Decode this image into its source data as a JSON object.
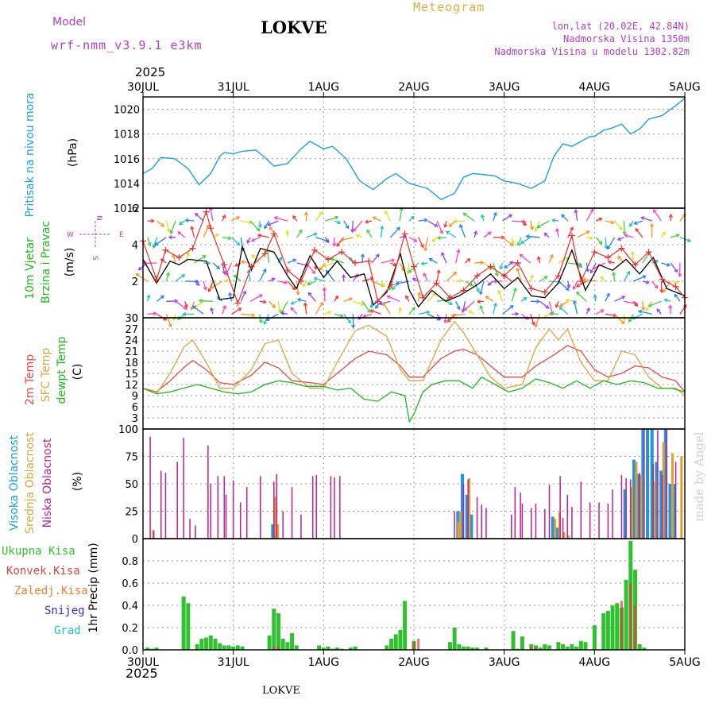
{
  "header": {
    "model_label": "Model",
    "model_name": "wrf-nmm_v3.9.1 e3km",
    "station": "LOKVE",
    "meteogram": "Meteogram",
    "lonlat": "lon,lat (20.02E, 42.84N)",
    "elevation": "Nadmorska Visina 1350m",
    "model_elevation": "Nadmorska Visina u modelu 1302.82m",
    "year_top": "2025",
    "year_bottom": "2025",
    "footer_station": "LOKVE",
    "watermark": "made by Angel"
  },
  "colors": {
    "pressure": "#1ea0e0",
    "wind_obs": "#000000",
    "wind_gust": "#e83030",
    "t2m": "#e84a4a",
    "sfc": "#d8a840",
    "dew": "#20b820",
    "high_cloud": "#1e96e0",
    "mid_cloud": "#e0a030",
    "low_cloud": "#c0208c",
    "precip": "#30c030",
    "conv": "#e04040",
    "frozen": "#e88030",
    "snow": "#3030e0",
    "hail": "#20c0c0",
    "purple_text": "#b040c0",
    "gold_text": "#d8b040"
  },
  "chart_data": [
    {
      "type": "line",
      "title": "Pritisak na nivou mora",
      "ylabel": "(hPa)",
      "x_ticks": [
        "30JUL",
        "31JUL",
        "1AUG",
        "2AUG",
        "3AUG",
        "4AUG",
        "5AUG"
      ],
      "ylim": [
        1012,
        1021
      ],
      "y_ticks": [
        1012,
        1014,
        1016,
        1018,
        1020
      ],
      "series": [
        {
          "name": "MSLP",
          "x": [
            0,
            0.1,
            0.2,
            0.35,
            0.5,
            0.62,
            0.75,
            0.85,
            0.9,
            1.0,
            1.1,
            1.25,
            1.35,
            1.45,
            1.6,
            1.75,
            1.85,
            2.0,
            2.1,
            2.25,
            2.4,
            2.55,
            2.7,
            2.8,
            2.95,
            3.05,
            3.15,
            3.3,
            3.45,
            3.55,
            3.65,
            3.8,
            3.9,
            4.0,
            4.15,
            4.3,
            4.45,
            4.55,
            4.65,
            4.75,
            4.85,
            4.95,
            5.0,
            5.1,
            5.2,
            5.3,
            5.4,
            5.5,
            5.6,
            5.75,
            5.9,
            6.0
          ],
          "values": [
            1014.8,
            1015.2,
            1016.1,
            1016.0,
            1015.2,
            1013.9,
            1014.8,
            1016.2,
            1016.5,
            1016.4,
            1016.6,
            1016.7,
            1016.1,
            1015.4,
            1015.6,
            1016.8,
            1017.4,
            1016.8,
            1017.0,
            1016.0,
            1014.2,
            1013.5,
            1014.4,
            1014.8,
            1014.0,
            1013.8,
            1013.6,
            1012.7,
            1013.2,
            1014.5,
            1014.8,
            1014.7,
            1014.6,
            1014.2,
            1014.0,
            1013.6,
            1014.2,
            1016.2,
            1017.2,
            1017.0,
            1017.4,
            1017.8,
            1017.8,
            1018.3,
            1018.5,
            1018.8,
            1018.0,
            1018.4,
            1019.2,
            1019.5,
            1020.3,
            1020.9
          ]
        }
      ]
    },
    {
      "type": "line",
      "title": "10m Vjetar Brzina i Pravac",
      "ylabel": "(m/s)",
      "ylim": [
        0,
        6
      ],
      "y_ticks": [
        0,
        2,
        4,
        6
      ],
      "direction_legend": [
        "N",
        "W",
        "E",
        "S"
      ],
      "series": [
        {
          "name": "speed",
          "x": [
            0,
            0.15,
            0.3,
            0.4,
            0.5,
            0.7,
            0.85,
            1.0,
            1.1,
            1.2,
            1.3,
            1.45,
            1.6,
            1.7,
            1.85,
            2.0,
            2.15,
            2.3,
            2.45,
            2.55,
            2.7,
            2.85,
            2.95,
            3.05,
            3.2,
            3.35,
            3.5,
            3.7,
            3.85,
            4.0,
            4.15,
            4.3,
            4.45,
            4.6,
            4.75,
            4.9,
            5.05,
            5.2,
            5.35,
            5.5,
            5.65,
            5.8,
            6.0
          ],
          "values": [
            3.2,
            1.9,
            3.1,
            2.9,
            3.2,
            3.1,
            1.0,
            1.1,
            3.9,
            2.6,
            3.8,
            3.6,
            2.3,
            1.6,
            3.4,
            2.2,
            3.1,
            2.2,
            2.4,
            0.7,
            1.4,
            3.5,
            1.5,
            0.6,
            1.5,
            0.9,
            1.2,
            1.8,
            2.4,
            1.6,
            2.2,
            1.2,
            1.1,
            1.9,
            3.7,
            1.5,
            2.9,
            2.6,
            3.2,
            2.4,
            3.3,
            1.6,
            1.2
          ]
        },
        {
          "name": "gust",
          "x": [
            0,
            0.15,
            0.25,
            0.4,
            0.55,
            0.7,
            0.75,
            0.9,
            1.05,
            1.2,
            1.35,
            1.45,
            1.6,
            1.75,
            1.9,
            2.05,
            2.2,
            2.35,
            2.5,
            2.6,
            2.75,
            2.9,
            3.0,
            3.1,
            3.25,
            3.4,
            3.55,
            3.7,
            3.85,
            4.0,
            4.15,
            4.3,
            4.45,
            4.6,
            4.75,
            4.85,
            5.0,
            5.15,
            5.3,
            5.45,
            5.6,
            5.75,
            5.9,
            6.0
          ],
          "values": [
            4.2,
            2.1,
            3.7,
            3.3,
            3.8,
            5.8,
            4.9,
            2.9,
            0.8,
            2.8,
            3.5,
            4.6,
            2.6,
            2.0,
            3.7,
            3.2,
            3.6,
            3.0,
            3.1,
            0.9,
            1.8,
            4.6,
            2.8,
            1.1,
            1.9,
            1.1,
            1.5,
            2.3,
            2.8,
            2.3,
            3.0,
            1.6,
            1.4,
            2.3,
            4.5,
            2.0,
            3.6,
            3.3,
            3.8,
            2.9,
            3.6,
            2.1,
            1.7,
            1.1
          ]
        }
      ]
    },
    {
      "type": "line",
      "title": "2m Temp / SFC Temp / dewpt Temp",
      "ylabel": "(C)",
      "ylim": [
        0,
        30
      ],
      "y_ticks": [
        0,
        3,
        6,
        9,
        12,
        15,
        18,
        21,
        24,
        27,
        30
      ],
      "series": [
        {
          "name": "2m Temp",
          "x": [
            0,
            0.15,
            0.3,
            0.45,
            0.55,
            0.7,
            0.85,
            1.0,
            1.2,
            1.35,
            1.5,
            1.65,
            1.85,
            2.0,
            2.15,
            2.35,
            2.5,
            2.7,
            2.85,
            2.95,
            3.1,
            3.3,
            3.45,
            3.55,
            3.7,
            3.85,
            4.0,
            4.2,
            4.35,
            4.55,
            4.7,
            4.85,
            5.0,
            5.15,
            5.3,
            5.45,
            5.6,
            5.75,
            5.9,
            6.0
          ],
          "values": [
            11,
            10,
            13,
            16.5,
            18.5,
            16,
            12.5,
            12,
            14.5,
            18,
            16.5,
            13,
            12.5,
            12,
            15,
            19,
            21,
            20,
            17,
            14,
            14,
            19,
            21,
            21.5,
            20,
            17,
            14,
            14,
            17,
            20,
            22.5,
            21,
            16,
            14,
            15,
            17,
            16.5,
            14,
            13,
            10
          ]
        },
        {
          "name": "SFC Temp",
          "x": [
            0,
            0.15,
            0.3,
            0.45,
            0.55,
            0.7,
            0.85,
            1.0,
            1.2,
            1.35,
            1.5,
            1.65,
            1.85,
            2.0,
            2.15,
            2.35,
            2.5,
            2.7,
            2.85,
            2.95,
            3.1,
            3.3,
            3.45,
            3.55,
            3.7,
            3.85,
            4.0,
            4.2,
            4.35,
            4.5,
            4.6,
            4.7,
            4.85,
            5.0,
            5.15,
            5.3,
            5.45,
            5.6,
            5.75,
            5.9,
            6.0
          ],
          "values": [
            11,
            9.5,
            15,
            22,
            24,
            18,
            11,
            11,
            16,
            23,
            24,
            15,
            11,
            11,
            18,
            26.5,
            28,
            25,
            16,
            13,
            13,
            24,
            29,
            26,
            20,
            14,
            11,
            12,
            22,
            27,
            24,
            27,
            18,
            13,
            13,
            21,
            20,
            14,
            11,
            11,
            9
          ]
        },
        {
          "name": "dewpt Temp",
          "x": [
            0,
            0.15,
            0.3,
            0.45,
            0.6,
            0.75,
            0.9,
            1.05,
            1.2,
            1.35,
            1.5,
            1.65,
            1.8,
            2.0,
            2.15,
            2.3,
            2.45,
            2.6,
            2.75,
            2.9,
            2.95,
            3.0,
            3.1,
            3.2,
            3.35,
            3.5,
            3.65,
            3.75,
            3.9,
            4.05,
            4.2,
            4.35,
            4.5,
            4.65,
            4.8,
            4.95,
            5.1,
            5.25,
            5.4,
            5.55,
            5.7,
            5.85,
            6.0
          ],
          "values": [
            11,
            9.5,
            10,
            11,
            12,
            11,
            10,
            9.5,
            10,
            12,
            13,
            12.5,
            11.5,
            11.5,
            10.5,
            11,
            8,
            7.5,
            10,
            9,
            2,
            4,
            10,
            12,
            13,
            13,
            11,
            14,
            12,
            10,
            11,
            13.5,
            12.5,
            11,
            13,
            11,
            13,
            12,
            13,
            12.5,
            11,
            11,
            10
          ]
        }
      ]
    },
    {
      "type": "bar",
      "title": "Visoka Oblacnost / Srednja Oblacnost / Niska Oblacnost",
      "ylabel": "(%)",
      "ylim": [
        0,
        100
      ],
      "y_ticks": [
        0,
        25,
        50,
        75,
        100
      ],
      "series": [
        {
          "name": "Niska Oblacnost",
          "x": [
            0.08,
            0.12,
            0.2,
            0.25,
            0.38,
            0.45,
            0.52,
            0.58,
            0.72,
            0.75,
            0.83,
            0.9,
            0.92,
            1.0,
            1.08,
            1.15,
            1.3,
            1.45,
            1.48,
            1.55,
            1.65,
            1.75,
            1.88,
            1.92,
            2.08,
            2.12,
            2.18,
            3.45,
            3.55,
            3.6,
            3.7,
            3.75,
            3.8,
            4.08,
            4.12,
            4.18,
            4.2,
            4.3,
            4.35,
            4.45,
            4.5,
            4.62,
            4.65,
            4.7,
            4.75,
            4.85,
            4.95,
            5.05,
            5.15,
            5.2,
            5.3,
            5.35,
            5.4,
            5.5,
            5.55,
            5.65,
            5.7,
            5.75,
            5.8,
            5.9
          ],
          "values": [
            93,
            7,
            62,
            60,
            70,
            92,
            18,
            12,
            85,
            50,
            57,
            57,
            40,
            53,
            33,
            47,
            57,
            52,
            59,
            25,
            47,
            22,
            57,
            58,
            57,
            56,
            57,
            25,
            50,
            54,
            38,
            31,
            28,
            22,
            47,
            42,
            32,
            28,
            32,
            27,
            49,
            57,
            19,
            40,
            29,
            52,
            33,
            33,
            32,
            45,
            58,
            55,
            54,
            60,
            100,
            68,
            99,
            58,
            100,
            70
          ]
        },
        {
          "name": "Srednja Oblacnost",
          "x": [
            0.1,
            1.45,
            1.48,
            3.48,
            3.5,
            3.6,
            4.55,
            4.6,
            4.65,
            4.7,
            5.4,
            5.45,
            5.5,
            5.65,
            5.75,
            5.85,
            5.95
          ],
          "values": [
            8,
            38,
            13,
            15,
            25,
            55,
            18,
            24,
            6,
            3,
            47,
            70,
            58,
            52,
            88,
            78,
            75
          ]
        },
        {
          "name": "Visoka Oblacnost",
          "x": [
            1.45,
            1.48,
            3.5,
            3.55,
            3.6,
            3.65,
            4.55,
            4.6,
            5.35,
            5.45,
            5.5,
            5.55,
            5.6,
            5.65,
            5.7,
            5.75,
            5.8,
            5.85,
            5.9
          ],
          "values": [
            13,
            6,
            25,
            59,
            40,
            22,
            20,
            10,
            45,
            72,
            59,
            100,
            100,
            100,
            70,
            62,
            100,
            50,
            50
          ]
        }
      ]
    },
    {
      "type": "bar",
      "title": "1hr Precip",
      "ylabel": "(mm)",
      "ylim": [
        0,
        1.0
      ],
      "y_ticks": [
        0,
        0.2,
        0.4,
        0.6,
        0.8
      ],
      "legend": [
        "Ukupna Kisa",
        "Konvek.Kisa",
        "Zaledj.Kisa",
        "Snijeg",
        "Grad"
      ],
      "series": [
        {
          "name": "Ukupna Kisa",
          "x": [
            0.05,
            0.1,
            0.15,
            0.45,
            0.5,
            0.6,
            0.65,
            0.7,
            0.75,
            0.8,
            0.85,
            0.9,
            0.95,
            1.0,
            1.05,
            1.1,
            1.4,
            1.45,
            1.5,
            1.55,
            1.6,
            1.65,
            1.7,
            1.95,
            2.0,
            2.05,
            2.1,
            2.15,
            2.2,
            2.3,
            2.35,
            2.7,
            2.75,
            2.8,
            2.85,
            2.9,
            3.0,
            3.4,
            3.45,
            3.5,
            3.55,
            3.6,
            3.65,
            3.7,
            3.8,
            4.1,
            4.15,
            4.2,
            4.3,
            4.35,
            4.4,
            4.45,
            4.5,
            4.6,
            4.65,
            4.7,
            4.75,
            4.8,
            4.85,
            4.9,
            5.0,
            5.1,
            5.15,
            5.2,
            5.25,
            5.3,
            5.35,
            5.4,
            5.45,
            5.5,
            5.55
          ],
          "values": [
            0.02,
            0.01,
            0.02,
            0.48,
            0.42,
            0.05,
            0.1,
            0.11,
            0.13,
            0.1,
            0.06,
            0.04,
            0.04,
            0.03,
            0.04,
            0.03,
            0.13,
            0.37,
            0.33,
            0.1,
            0.07,
            0.15,
            0.04,
            0.04,
            0.02,
            0.03,
            0.01,
            0.02,
            0.01,
            0.02,
            0.03,
            0.04,
            0.1,
            0.14,
            0.18,
            0.44,
            0.08,
            0.07,
            0.2,
            0.05,
            0.03,
            0.03,
            0.02,
            0.02,
            0.02,
            0.17,
            0.01,
            0.12,
            0.05,
            0.04,
            0.02,
            0.05,
            0.04,
            0.07,
            0.05,
            0.03,
            0.05,
            0.03,
            0.08,
            0.07,
            0.22,
            0.33,
            0.35,
            0.4,
            0.42,
            0.38,
            0.63,
            0.98,
            0.72,
            0.05,
            0.02
          ]
        },
        {
          "name": "Konvek.Kisa",
          "x": [
            1.45,
            1.5,
            3.0,
            3.05,
            4.3,
            4.35,
            5.3,
            5.4,
            5.45
          ],
          "values": [
            0.03,
            0.03,
            0.07,
            0.1,
            0.03,
            0.02,
            0.44,
            0.6,
            0.4
          ]
        }
      ]
    }
  ],
  "panel_labels": {
    "p1_title": "Pritisak na nivou mora",
    "p1_unit": "(hPa)",
    "p2_title1": "10m Vjetar",
    "p2_title2": "Brzina i Pravac",
    "p2_unit": "(m/s)",
    "p3_t1": "2m Temp",
    "p3_t2": "SFC Temp",
    "p3_t3": "dewpt Temp",
    "p3_unit": "(C)",
    "p4_t1": "Visoka Oblacnost",
    "p4_t2": "Srednja Oblacnost",
    "p4_t3": "Niska Oblacnost",
    "p4_unit": "(%)",
    "p5_unit": "1hr Precip (mm)"
  }
}
